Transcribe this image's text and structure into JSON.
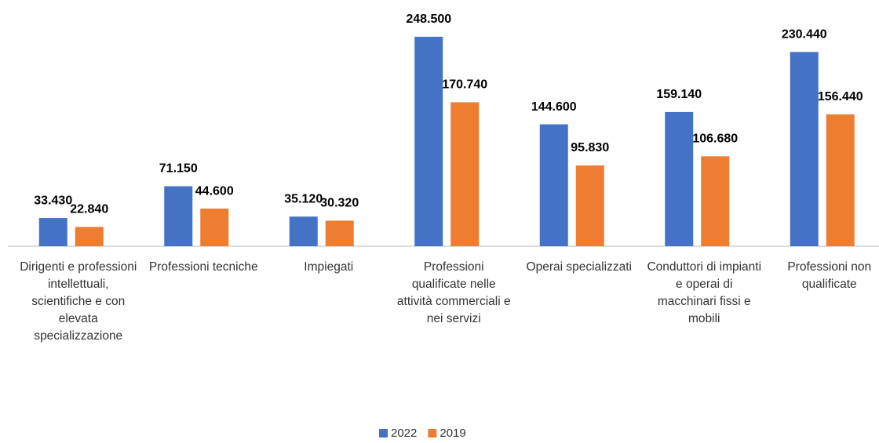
{
  "chart_data": {
    "type": "bar",
    "categories": [
      "Dirigenti e professioni intellettuali, scientifiche e con elevata specializzazione",
      "Professioni tecniche",
      "Impiegati",
      "Professioni qualificate nelle attività commerciali e nei servizi",
      "Operai specializzati",
      "Conduttori di impianti e operai di macchinari fissi e mobili",
      "Professioni non qualificate"
    ],
    "series": [
      {
        "name": "2022",
        "color": "#4472c4",
        "values": [
          33430,
          71150,
          35120,
          248500,
          144600,
          159140,
          230440
        ],
        "value_labels": [
          "33.430",
          "71.150",
          "35.120",
          "248.500",
          "144.600",
          "159.140",
          "230.440"
        ]
      },
      {
        "name": "2019",
        "color": "#ed7d31",
        "values": [
          22840,
          44600,
          30320,
          170740,
          95830,
          106680,
          156440
        ],
        "value_labels": [
          "22.840",
          "44.600",
          "30.320",
          "170.740",
          "95.830",
          "106.680",
          "156.440"
        ]
      }
    ],
    "ylim": [
      0,
      280000
    ]
  }
}
